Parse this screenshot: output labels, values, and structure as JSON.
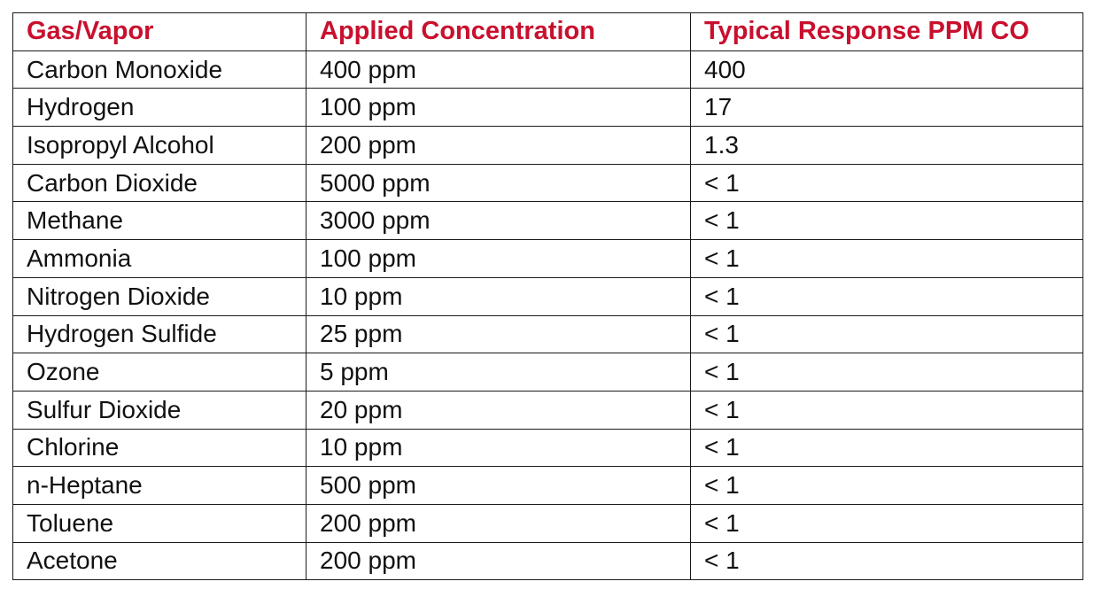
{
  "table": {
    "headers": [
      "Gas/Vapor",
      "Applied Concentration",
      "Typical Response PPM CO"
    ],
    "header_color": "#c8102e",
    "rows": [
      [
        "Carbon Monoxide",
        "400 ppm",
        "400"
      ],
      [
        "Hydrogen",
        "100 ppm",
        "17"
      ],
      [
        "Isopropyl Alcohol",
        "200 ppm",
        "1.3"
      ],
      [
        "Carbon Dioxide",
        "5000 ppm",
        "< 1"
      ],
      [
        "Methane",
        "3000 ppm",
        "< 1"
      ],
      [
        "Ammonia",
        "100 ppm",
        "< 1"
      ],
      [
        "Nitrogen Dioxide",
        "10 ppm",
        "< 1"
      ],
      [
        "Hydrogen Sulfide",
        "25 ppm",
        "< 1"
      ],
      [
        "Ozone",
        "5 ppm",
        "< 1"
      ],
      [
        "Sulfur Dioxide",
        "20 ppm",
        "< 1"
      ],
      [
        "Chlorine",
        "10 ppm",
        "< 1"
      ],
      [
        "n-Heptane",
        "500 ppm",
        "< 1"
      ],
      [
        "Toluene",
        "200 ppm",
        "< 1"
      ],
      [
        "Acetone",
        "200 ppm",
        "< 1"
      ]
    ]
  }
}
